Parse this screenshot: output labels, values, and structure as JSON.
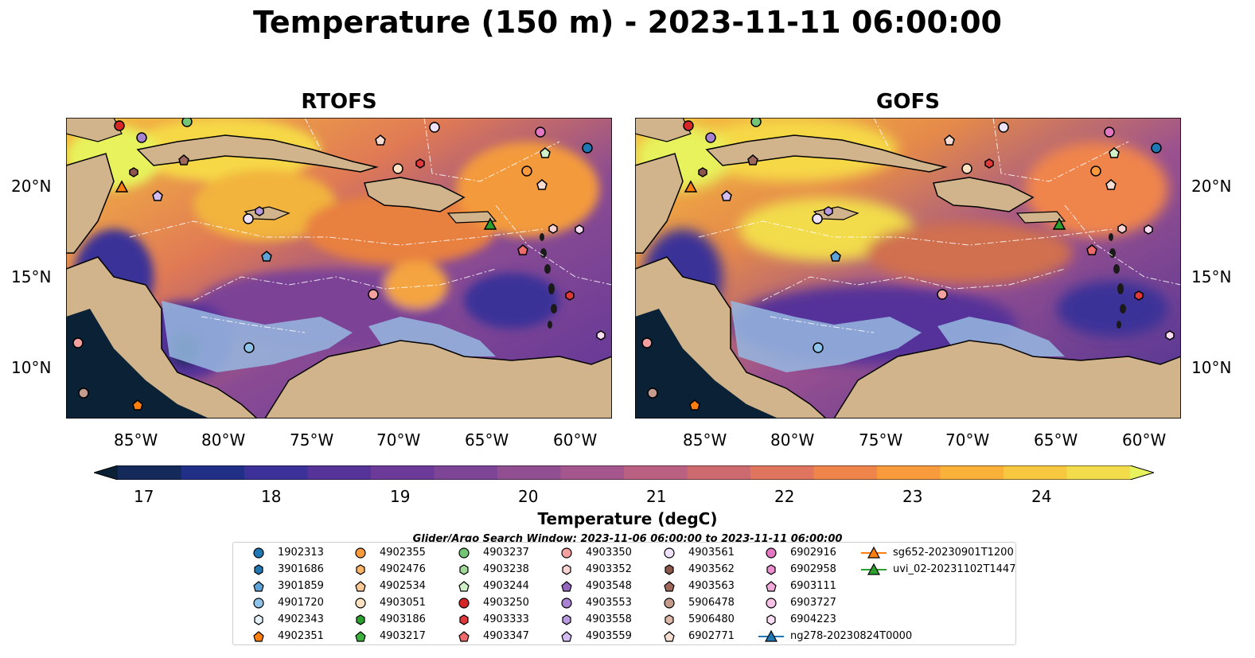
{
  "title": "Temperature (150 m) - 2023-11-11 06:00:00",
  "panels": [
    {
      "title": "RTOFS"
    },
    {
      "title": "GOFS"
    }
  ],
  "x_ticks": [
    "85°W",
    "80°W",
    "75°W",
    "70°W",
    "65°W",
    "60°W"
  ],
  "y_ticks": [
    "20°N",
    "15°N",
    "10°N"
  ],
  "colorbar": {
    "label": "Temperature (degC)",
    "ticks": [
      "17",
      "18",
      "19",
      "20",
      "21",
      "22",
      "23",
      "24"
    ],
    "range": [
      16.75,
      24.5
    ],
    "extend": "both",
    "colors": [
      "#0b2236",
      "#132a5a",
      "#212f86",
      "#3b3198",
      "#553399",
      "#6c3a98",
      "#7e4596",
      "#914f92",
      "#a5568c",
      "#ba6080",
      "#cd6a70",
      "#e0755f",
      "#f0854b",
      "#f89b3d",
      "#f9b13a",
      "#f6c73f",
      "#f2dc4c",
      "#e7f25c"
    ]
  },
  "search_window": "Glider/Argo Search Window: 2023-11-06 06:00:00 to 2023-11-11 06:00:00",
  "legend": [
    {
      "label": "1902313",
      "marker": "circle",
      "color": "#1f77b4"
    },
    {
      "label": "3901686",
      "marker": "hexagon",
      "color": "#1f77b4"
    },
    {
      "label": "3901859",
      "marker": "pentagon",
      "color": "#5fa2d6"
    },
    {
      "label": "4901720",
      "marker": "circle",
      "color": "#8fc3ea"
    },
    {
      "label": "4902343",
      "marker": "hexagon",
      "color": "#e6f2fb"
    },
    {
      "label": "4902351",
      "marker": "pentagon",
      "color": "#ff7f0e"
    },
    {
      "label": "4902355",
      "marker": "circle",
      "color": "#ff9a3c"
    },
    {
      "label": "4902476",
      "marker": "hexagon",
      "color": "#ffb366"
    },
    {
      "label": "4902534",
      "marker": "pentagon",
      "color": "#ffc995"
    },
    {
      "label": "4903051",
      "marker": "circle",
      "color": "#ffe0c0"
    },
    {
      "label": "4903186",
      "marker": "hexagon",
      "color": "#2ca02c"
    },
    {
      "label": "4903217",
      "marker": "pentagon",
      "color": "#3cb23c"
    },
    {
      "label": "4903237",
      "marker": "circle",
      "color": "#74c476"
    },
    {
      "label": "4903238",
      "marker": "hexagon",
      "color": "#a1d99b"
    },
    {
      "label": "4903244",
      "marker": "pentagon",
      "color": "#d0f0c8"
    },
    {
      "label": "4903250",
      "marker": "circle",
      "color": "#d62728"
    },
    {
      "label": "4903333",
      "marker": "hexagon",
      "color": "#e0393a"
    },
    {
      "label": "4903347",
      "marker": "pentagon",
      "color": "#ef6a6a"
    },
    {
      "label": "4903350",
      "marker": "circle",
      "color": "#f4a0a0"
    },
    {
      "label": "4903352",
      "marker": "hexagon",
      "color": "#fbd3d3"
    },
    {
      "label": "4903548",
      "marker": "pentagon",
      "color": "#9467bd"
    },
    {
      "label": "4903553",
      "marker": "circle",
      "color": "#a881d0"
    },
    {
      "label": "4903558",
      "marker": "hexagon",
      "color": "#b99ae0"
    },
    {
      "label": "4903559",
      "marker": "pentagon",
      "color": "#d2bcf0"
    },
    {
      "label": "4903561",
      "marker": "circle",
      "color": "#efe2fb"
    },
    {
      "label": "4903562",
      "marker": "hexagon",
      "color": "#8c564b"
    },
    {
      "label": "4903563",
      "marker": "pentagon",
      "color": "#a0685c"
    },
    {
      "label": "5906478",
      "marker": "circle",
      "color": "#c49c8e"
    },
    {
      "label": "5906480",
      "marker": "hexagon",
      "color": "#e0b8aa"
    },
    {
      "label": "6902771",
      "marker": "pentagon",
      "color": "#f7dcd2"
    },
    {
      "label": "6902916",
      "marker": "circle",
      "color": "#e377c2"
    },
    {
      "label": "6902958",
      "marker": "hexagon",
      "color": "#ec8fd0"
    },
    {
      "label": "6903111",
      "marker": "pentagon",
      "color": "#f3a9dc"
    },
    {
      "label": "6903727",
      "marker": "circle",
      "color": "#f7c1e7"
    },
    {
      "label": "6904223",
      "marker": "hexagon",
      "color": "#fbdcf2"
    },
    {
      "label": "ng278-20230824T0000",
      "marker": "triangle-line",
      "color": "#1f77b4"
    },
    {
      "label": "sg652-20230901T1200",
      "marker": "triangle-line",
      "color": "#ff7f0e"
    },
    {
      "label": "uvi_02-20231102T1447",
      "marker": "triangle-line",
      "color": "#2ca02c"
    }
  ],
  "map_colors": {
    "land": "#d2b48c",
    "shelf": "#96b8e0",
    "pacific": "#0b2236",
    "warm_pool": "#e7f25c"
  }
}
